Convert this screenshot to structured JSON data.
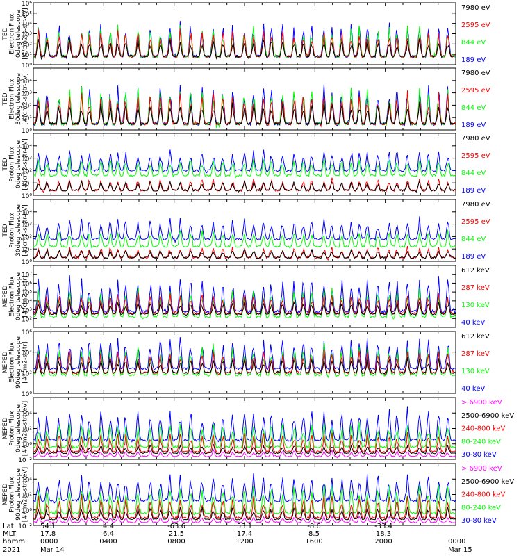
{
  "colors": {
    "black": "#000000",
    "red": "#ff0000",
    "green": "#00ff00",
    "blue": "#0000ff",
    "magenta": "#ff00ff"
  },
  "chart_data": [
    {
      "type": "line",
      "ylabel": [
        "TED",
        "Electron Flux",
        "0deg telescope",
        "[#/cm2-s-str-eV]"
      ],
      "yscale": "log",
      "ylim_exp": [
        0,
        6
      ],
      "tick_exponents": [
        0,
        1,
        2,
        3,
        4,
        5,
        6
      ],
      "series": [
        {
          "name": "7980 eV",
          "color": "#000000",
          "baseline_exp": 0.8,
          "peak_exp": 2.6
        },
        {
          "name": "2595 eV",
          "color": "#ff0000",
          "baseline_exp": 0.8,
          "peak_exp": 3.6
        },
        {
          "name": "844 eV",
          "color": "#00ff00",
          "baseline_exp": 0.8,
          "peak_exp": 4.0
        },
        {
          "name": "189 eV",
          "color": "#0000ff",
          "baseline_exp": 0.8,
          "peak_exp": 4.4
        }
      ]
    },
    {
      "type": "line",
      "ylabel": [
        "TED",
        "Electron Flux",
        "30deg telescope",
        "[#/cm2-s-str-eV]"
      ],
      "yscale": "log",
      "ylim_exp": [
        0,
        5
      ],
      "tick_exponents": [
        0,
        1,
        2,
        3,
        4
      ],
      "series": [
        {
          "name": "7980 eV",
          "color": "#000000",
          "baseline_exp": 0.5,
          "peak_exp": 2.4
        },
        {
          "name": "2595 eV",
          "color": "#ff0000",
          "baseline_exp": 0.5,
          "peak_exp": 3.2
        },
        {
          "name": "844 eV",
          "color": "#00ff00",
          "baseline_exp": 0.5,
          "peak_exp": 3.6
        },
        {
          "name": "189 eV",
          "color": "#0000ff",
          "baseline_exp": 0.5,
          "peak_exp": 4.0
        }
      ]
    },
    {
      "type": "line",
      "ylabel": [
        "TED",
        "Proton Flux",
        "0deg telescope",
        "[#/cm2-s-str-eV]"
      ],
      "yscale": "log",
      "ylim_exp": [
        0,
        5
      ],
      "tick_exponents": [
        0,
        1,
        2,
        3,
        4
      ],
      "series": [
        {
          "name": "7980 eV",
          "color": "#000000",
          "baseline_exp": 0.4,
          "peak_exp": 1.2
        },
        {
          "name": "2595 eV",
          "color": "#ff0000",
          "baseline_exp": 0.4,
          "peak_exp": 1.4
        },
        {
          "name": "844 eV",
          "color": "#00ff00",
          "baseline_exp": 1.6,
          "peak_exp": 3.1
        },
        {
          "name": "189 eV",
          "color": "#0000ff",
          "baseline_exp": 2.0,
          "peak_exp": 3.8
        }
      ]
    },
    {
      "type": "line",
      "ylabel": [
        "TED",
        "Proton Flux",
        "30deg telescope",
        "[#/cm2-s-str-eV]"
      ],
      "yscale": "log",
      "ylim_exp": [
        0,
        5
      ],
      "tick_exponents": [
        0,
        1,
        2,
        3,
        4
      ],
      "series": [
        {
          "name": "7980 eV",
          "color": "#000000",
          "baseline_exp": 0.3,
          "peak_exp": 1.0
        },
        {
          "name": "2595 eV",
          "color": "#ff0000",
          "baseline_exp": 0.3,
          "peak_exp": 1.2
        },
        {
          "name": "844 eV",
          "color": "#00ff00",
          "baseline_exp": 1.2,
          "peak_exp": 2.6
        },
        {
          "name": "189 eV",
          "color": "#0000ff",
          "baseline_exp": 1.8,
          "peak_exp": 3.6
        }
      ]
    },
    {
      "type": "line",
      "ylabel": [
        "MEPED",
        "Electron Flux",
        "0deg telescope",
        "[#/cm2-s-str]"
      ],
      "yscale": "log",
      "ylim_exp": [
        1,
        8
      ],
      "tick_exponents": [
        2,
        3,
        4,
        5,
        6,
        7
      ],
      "series": [
        {
          "name": "612 keV",
          "color": "#000000",
          "baseline_exp": 2.5,
          "peak_exp": 4.0
        },
        {
          "name": "287 keV",
          "color": "#ff0000",
          "baseline_exp": 2.6,
          "peak_exp": 5.0
        },
        {
          "name": "130 keV",
          "color": "#00ff00",
          "baseline_exp": 2.2,
          "peak_exp": 5.5
        },
        {
          "name": "40 keV",
          "color": "#0000ff",
          "baseline_exp": 2.8,
          "peak_exp": 7.0
        }
      ]
    },
    {
      "type": "line",
      "ylabel": [
        "MEPED",
        "Electron Flux",
        "90deg telescope",
        "[#/cm2-s-str]"
      ],
      "yscale": "log",
      "ylim_exp": [
        0,
        6
      ],
      "tick_exponents": [
        0,
        2,
        4,
        6
      ],
      "series": [
        {
          "name": "612 keV",
          "color": "#000000",
          "baseline_exp": 2.0,
          "peak_exp": 3.5
        },
        {
          "name": "287 keV",
          "color": "#ff0000",
          "baseline_exp": 2.0,
          "peak_exp": 4.2
        },
        {
          "name": "130 keV",
          "color": "#00ff00",
          "baseline_exp": 1.8,
          "peak_exp": 4.8
        },
        {
          "name": "40 keV",
          "color": "#0000ff",
          "baseline_exp": 2.4,
          "peak_exp": 5.6
        }
      ]
    },
    {
      "type": "line",
      "ylabel": [
        "MEPED",
        "Proton Flux",
        "0deg telescope",
        "[#/cm2-s-str-keV]"
      ],
      "yscale": "log",
      "ylim_exp": [
        -2,
        6
      ],
      "tick_exponents": [
        -2,
        0,
        2,
        4
      ],
      "series": [
        {
          "name": "> 6900 keV",
          "color": "#ff00ff",
          "baseline_exp": -1.6,
          "peak_exp": -0.8
        },
        {
          "name": "2500-6900 keV",
          "color": "#000000",
          "baseline_exp": -1.2,
          "peak_exp": 0.0
        },
        {
          "name": "240-800 keV",
          "color": "#ff0000",
          "baseline_exp": -1.0,
          "peak_exp": 1.6
        },
        {
          "name": "80-240 keV",
          "color": "#00ff00",
          "baseline_exp": -0.4,
          "peak_exp": 3.0
        },
        {
          "name": "30-80 keV",
          "color": "#0000ff",
          "baseline_exp": 0.5,
          "peak_exp": 4.8
        }
      ]
    },
    {
      "type": "line",
      "ylabel": [
        "MEPED",
        "Proton Flux",
        "90deg telescope",
        "[#/cm2-s-str-keV]"
      ],
      "yscale": "log",
      "ylim_exp": [
        -2,
        6
      ],
      "tick_exponents": [
        -2,
        0,
        2,
        4
      ],
      "series": [
        {
          "name": "> 6900 keV",
          "color": "#ff00ff",
          "baseline_exp": -1.6,
          "peak_exp": -0.8
        },
        {
          "name": "2500-6900 keV",
          "color": "#000000",
          "baseline_exp": -1.2,
          "peak_exp": 0.5
        },
        {
          "name": "240-800 keV",
          "color": "#ff0000",
          "baseline_exp": -1.0,
          "peak_exp": 2.0
        },
        {
          "name": "80-240 keV",
          "color": "#00ff00",
          "baseline_exp": -0.4,
          "peak_exp": 3.4
        },
        {
          "name": "30-80 keV",
          "color": "#0000ff",
          "baseline_exp": 1.2,
          "peak_exp": 4.8
        }
      ]
    }
  ],
  "x_axis": {
    "row_labels": [
      "Lat",
      "MLT",
      "hhmm",
      "2021"
    ],
    "ticks": [
      {
        "lat": "54.1",
        "mlt": "17.8",
        "hhmm": "0000",
        "date": "Mar 14"
      },
      {
        "lat": "4.4",
        "mlt": "6.4",
        "hhmm": "0400",
        "date": ""
      },
      {
        "lat": "-63.6",
        "mlt": "21.5",
        "hhmm": "0800",
        "date": ""
      },
      {
        "lat": "53.1",
        "mlt": "17.4",
        "hhmm": "1200",
        "date": ""
      },
      {
        "lat": "-8.6",
        "mlt": "8.5",
        "hhmm": "1600",
        "date": ""
      },
      {
        "lat": "-33.4",
        "mlt": "18.3",
        "hhmm": "2000",
        "date": ""
      },
      {
        "lat": "",
        "mlt": "",
        "hhmm": "0000",
        "date": "Mar 15"
      }
    ]
  }
}
